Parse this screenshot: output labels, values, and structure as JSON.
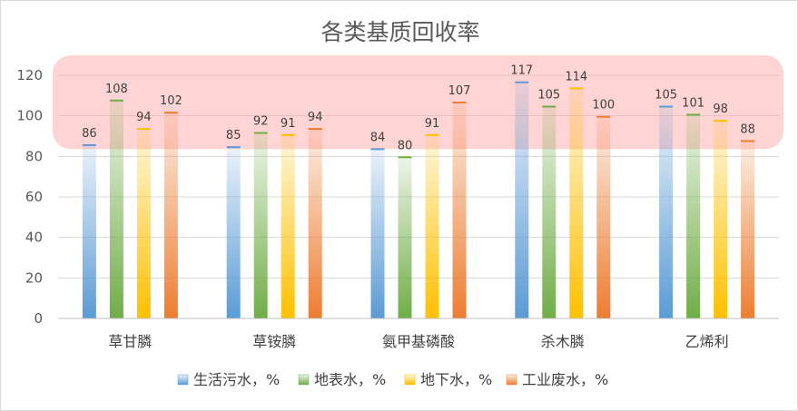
{
  "chart_data": {
    "type": "bar",
    "title": "各类基质回收率",
    "categories": [
      "草甘膦",
      "草铵膦",
      "氨甲基磷酸",
      "杀木膦",
      "乙烯利"
    ],
    "series": [
      {
        "name": "生活污水，%",
        "values": [
          86,
          85,
          84,
          117,
          105
        ],
        "color": "#5b9bd5"
      },
      {
        "name": "地表水，%",
        "values": [
          108,
          92,
          80,
          105,
          101
        ],
        "color": "#70ad47"
      },
      {
        "name": "地下水，%",
        "values": [
          94,
          91,
          91,
          114,
          98
        ],
        "color": "#ffc000"
      },
      {
        "name": "工业废水，%",
        "values": [
          102,
          94,
          107,
          100,
          88
        ],
        "color": "#ed7d31"
      }
    ],
    "ylim": [
      0,
      120
    ],
    "yticks": [
      "0",
      "20",
      "40",
      "60",
      "80",
      "100",
      "120"
    ],
    "grid": true,
    "legend_position": "bottom",
    "highlight_band": {
      "range": [
        80,
        120
      ],
      "color": "#ff9999"
    }
  }
}
